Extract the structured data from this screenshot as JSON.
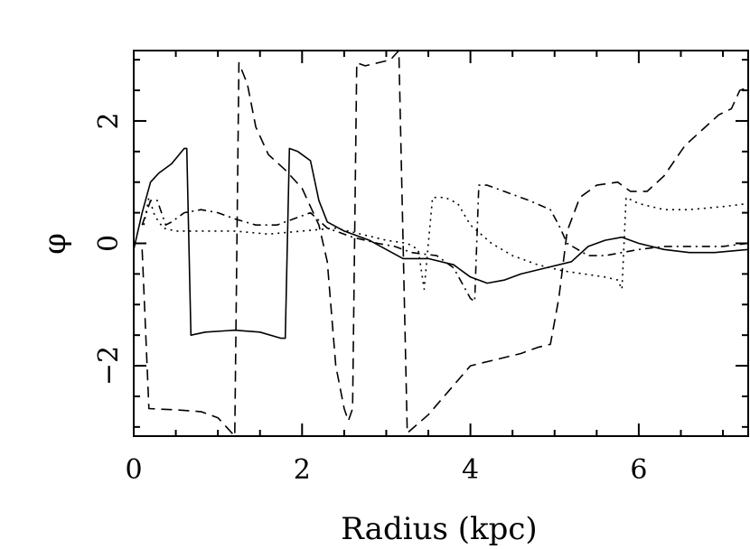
{
  "chart_data": {
    "type": "line",
    "title": "",
    "xlabel": "Radius (kpc)",
    "ylabel": "φ",
    "xlim": [
      0,
      7.3
    ],
    "ylim": [
      -3.15,
      3.15
    ],
    "x_ticks": [
      0,
      2,
      4,
      6
    ],
    "x_tick_labels": [
      "0",
      "2",
      "4",
      "6"
    ],
    "y_ticks": [
      -2,
      0,
      2
    ],
    "y_tick_labels": [
      "−2",
      "0",
      "2"
    ],
    "grid": false,
    "legend": "none",
    "series": [
      {
        "style": "solid",
        "points": [
          [
            0.0,
            -0.1
          ],
          [
            0.1,
            0.5
          ],
          [
            0.2,
            1.0
          ],
          [
            0.3,
            1.15
          ],
          [
            0.45,
            1.3
          ],
          [
            0.6,
            1.55
          ],
          [
            0.63,
            1.55
          ],
          [
            0.68,
            -1.5
          ],
          [
            0.85,
            -1.45
          ],
          [
            1.2,
            -1.42
          ],
          [
            1.5,
            -1.45
          ],
          [
            1.75,
            -1.55
          ],
          [
            1.8,
            -1.55
          ],
          [
            1.85,
            1.55
          ],
          [
            1.95,
            1.5
          ],
          [
            2.1,
            1.35
          ],
          [
            2.2,
            0.7
          ],
          [
            2.3,
            0.35
          ],
          [
            2.5,
            0.2
          ],
          [
            2.8,
            0.05
          ],
          [
            3.0,
            -0.1
          ],
          [
            3.2,
            -0.25
          ],
          [
            3.5,
            -0.25
          ],
          [
            3.8,
            -0.35
          ],
          [
            4.0,
            -0.55
          ],
          [
            4.2,
            -0.65
          ],
          [
            4.4,
            -0.6
          ],
          [
            4.6,
            -0.5
          ],
          [
            4.9,
            -0.4
          ],
          [
            5.2,
            -0.3
          ],
          [
            5.4,
            -0.05
          ],
          [
            5.6,
            0.05
          ],
          [
            5.8,
            0.1
          ],
          [
            6.0,
            0.0
          ],
          [
            6.3,
            -0.1
          ],
          [
            6.6,
            -0.15
          ],
          [
            6.9,
            -0.15
          ],
          [
            7.3,
            -0.1
          ]
        ]
      },
      {
        "style": "dashed",
        "points": [
          [
            0.1,
            -0.1
          ],
          [
            0.18,
            -2.7
          ],
          [
            0.5,
            -2.72
          ],
          [
            0.8,
            -2.75
          ],
          [
            1.0,
            -2.85
          ],
          [
            1.1,
            -3.0
          ],
          [
            1.2,
            -3.15
          ],
          [
            1.25,
            2.95
          ],
          [
            1.35,
            2.6
          ],
          [
            1.45,
            1.9
          ],
          [
            1.6,
            1.45
          ],
          [
            1.8,
            1.2
          ],
          [
            2.0,
            0.9
          ],
          [
            2.2,
            0.3
          ],
          [
            2.3,
            -0.3
          ],
          [
            2.4,
            -2.0
          ],
          [
            2.5,
            -2.7
          ],
          [
            2.55,
            -2.9
          ],
          [
            2.6,
            -2.7
          ],
          [
            2.65,
            2.95
          ],
          [
            2.75,
            2.9
          ],
          [
            2.9,
            2.95
          ],
          [
            3.05,
            3.0
          ],
          [
            3.15,
            3.15
          ],
          [
            3.25,
            -3.1
          ],
          [
            3.5,
            -2.8
          ],
          [
            3.75,
            -2.4
          ],
          [
            4.0,
            -2.0
          ],
          [
            4.3,
            -1.9
          ],
          [
            4.6,
            -1.8
          ],
          [
            4.8,
            -1.7
          ],
          [
            4.95,
            -1.65
          ],
          [
            5.05,
            -0.9
          ],
          [
            5.15,
            0.2
          ],
          [
            5.3,
            0.75
          ],
          [
            5.5,
            0.95
          ],
          [
            5.75,
            1.0
          ],
          [
            5.9,
            0.85
          ],
          [
            6.1,
            0.85
          ],
          [
            6.3,
            1.1
          ],
          [
            6.55,
            1.6
          ],
          [
            6.75,
            1.85
          ],
          [
            6.95,
            2.1
          ],
          [
            7.1,
            2.2
          ],
          [
            7.2,
            2.5
          ],
          [
            7.3,
            2.55
          ]
        ]
      },
      {
        "style": "dotted",
        "points": [
          [
            0.12,
            0.3
          ],
          [
            0.18,
            0.75
          ],
          [
            0.25,
            0.45
          ],
          [
            0.35,
            0.25
          ],
          [
            0.5,
            0.2
          ],
          [
            0.8,
            0.2
          ],
          [
            1.2,
            0.2
          ],
          [
            1.6,
            0.15
          ],
          [
            2.0,
            0.2
          ],
          [
            2.4,
            0.25
          ],
          [
            2.7,
            0.15
          ],
          [
            3.0,
            0.05
          ],
          [
            3.25,
            0.0
          ],
          [
            3.38,
            -0.1
          ],
          [
            3.45,
            -0.75
          ],
          [
            3.55,
            0.75
          ],
          [
            3.7,
            0.75
          ],
          [
            3.85,
            0.65
          ],
          [
            4.0,
            0.3
          ],
          [
            4.25,
            0.0
          ],
          [
            4.5,
            -0.2
          ],
          [
            4.8,
            -0.35
          ],
          [
            5.1,
            -0.45
          ],
          [
            5.35,
            -0.5
          ],
          [
            5.6,
            -0.55
          ],
          [
            5.75,
            -0.6
          ],
          [
            5.8,
            -0.75
          ],
          [
            5.85,
            0.75
          ],
          [
            6.0,
            0.65
          ],
          [
            6.3,
            0.55
          ],
          [
            6.6,
            0.55
          ],
          [
            7.0,
            0.6
          ],
          [
            7.3,
            0.65
          ]
        ]
      },
      {
        "style": "dash-dot",
        "points": [
          [
            0.1,
            0.3
          ],
          [
            0.2,
            0.7
          ],
          [
            0.28,
            0.7
          ],
          [
            0.38,
            0.3
          ],
          [
            0.45,
            0.35
          ],
          [
            0.6,
            0.5
          ],
          [
            0.8,
            0.55
          ],
          [
            1.0,
            0.5
          ],
          [
            1.2,
            0.4
          ],
          [
            1.45,
            0.3
          ],
          [
            1.7,
            0.3
          ],
          [
            1.9,
            0.4
          ],
          [
            2.1,
            0.5
          ],
          [
            2.3,
            0.25
          ],
          [
            2.6,
            0.1
          ],
          [
            2.9,
            0.0
          ],
          [
            3.1,
            -0.05
          ],
          [
            3.3,
            -0.15
          ],
          [
            3.6,
            -0.2
          ],
          [
            3.8,
            -0.4
          ],
          [
            4.0,
            -0.9
          ],
          [
            4.05,
            -0.95
          ],
          [
            4.1,
            0.95
          ],
          [
            4.2,
            0.95
          ],
          [
            4.4,
            0.85
          ],
          [
            4.7,
            0.7
          ],
          [
            4.95,
            0.55
          ],
          [
            5.05,
            0.3
          ],
          [
            5.15,
            0.0
          ],
          [
            5.4,
            -0.2
          ],
          [
            5.6,
            -0.2
          ],
          [
            5.8,
            -0.15
          ],
          [
            6.0,
            -0.1
          ],
          [
            6.3,
            -0.05
          ],
          [
            6.6,
            -0.05
          ],
          [
            7.0,
            -0.05
          ],
          [
            7.3,
            0.0
          ]
        ]
      }
    ]
  }
}
